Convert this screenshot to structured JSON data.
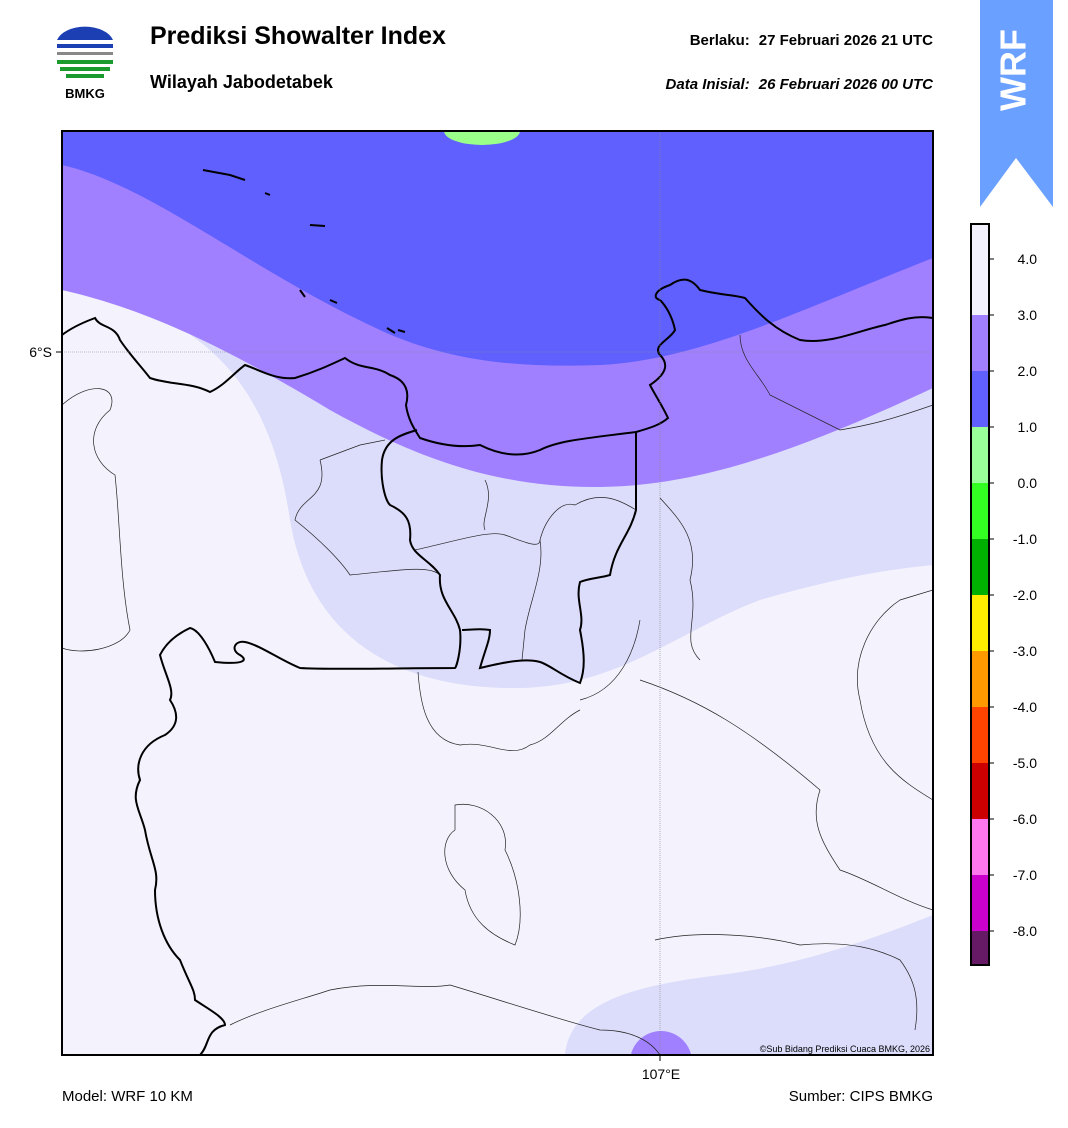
{
  "header": {
    "title": "Prediksi Showalter Index",
    "subtitle": "Wilayah Jabodetabek",
    "valid_label": "Berlaku:",
    "valid_time": "27 Februari 2026 21 UTC",
    "init_label": "Data Inisial:",
    "init_time": "26 Februari 2026 00 UTC"
  },
  "logo": {
    "text": "BMKG"
  },
  "badge": {
    "text": "WRF"
  },
  "map": {
    "lat_label": "6°S",
    "lon_label": "107°E",
    "credit": "©Sub Bidang Prediksi Cuaca BMKG, 2026"
  },
  "colorbar": {
    "colors": [
      "#f2f1fd",
      "#a080ff",
      "#6060ff",
      "#99ff99",
      "#33ff22",
      "#00b000",
      "#ffee00",
      "#ff9900",
      "#ff4400",
      "#cc0000",
      "#ff77ee",
      "#cc00cc",
      "#661a66"
    ],
    "ticks": [
      "4.0",
      "3.0",
      "2.0",
      "1.0",
      "0.0",
      "-1.0",
      "-2.0",
      "-3.0",
      "-4.0",
      "-5.0",
      "-6.0",
      "-7.0",
      "-8.0"
    ]
  },
  "footer": {
    "model": "Model: WRF 10 KM",
    "source": "Sumber: CIPS BMKG"
  }
}
